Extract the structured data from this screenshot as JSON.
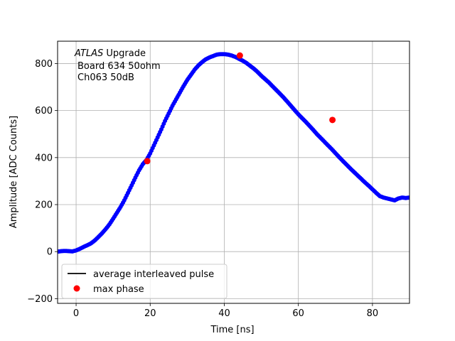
{
  "chart_data": {
    "type": "scatter",
    "xlabel": "Time [ns]",
    "ylabel": "Amplitude [ADC Counts]",
    "xlim": [
      -5,
      90
    ],
    "ylim": [
      -220,
      895
    ],
    "xticks": [
      0,
      20,
      40,
      60,
      80
    ],
    "yticks": [
      -200,
      0,
      200,
      400,
      600,
      800
    ],
    "grid": true,
    "legend_position": "lower-left",
    "annotation": {
      "line1_italic": "ATLAS",
      "line1_rest": " Upgrade",
      "line2": "Board 634 50ohm",
      "line3": "Ch063 50dB"
    },
    "series": [
      {
        "name": "average interleaved pulse",
        "color": "#000000",
        "marker_color": "#0000ff",
        "x": [
          -5,
          -4,
          -3,
          -2,
          -1,
          0,
          1,
          2,
          3,
          4,
          5,
          6,
          7,
          8,
          9,
          10,
          11,
          12,
          13,
          14,
          15,
          16,
          17,
          18,
          19,
          20,
          21,
          22,
          23,
          24,
          25,
          26,
          27,
          28,
          29,
          30,
          31,
          32,
          33,
          34,
          35,
          36,
          37,
          38,
          39,
          40,
          41,
          42,
          43,
          44,
          45,
          46,
          47,
          48,
          49,
          50,
          51,
          52,
          53,
          54,
          55,
          56,
          57,
          58,
          59,
          60,
          61,
          62,
          63,
          64,
          65,
          66,
          67,
          68,
          69,
          70,
          71,
          72,
          73,
          74,
          75,
          76,
          77,
          78,
          79,
          80,
          81,
          82,
          83,
          84,
          85,
          86,
          87,
          88,
          89,
          90
        ],
        "y": [
          0,
          2,
          3,
          2,
          1,
          5,
          12,
          20,
          27,
          35,
          47,
          62,
          78,
          96,
          116,
          140,
          165,
          190,
          218,
          250,
          282,
          315,
          346,
          372,
          390,
          418,
          452,
          486,
          520,
          556,
          588,
          620,
          648,
          676,
          704,
          730,
          752,
          774,
          792,
          806,
          818,
          826,
          832,
          838,
          840,
          840,
          838,
          834,
          828,
          820,
          812,
          802,
          790,
          778,
          764,
          748,
          734,
          720,
          704,
          688,
          672,
          656,
          638,
          620,
          602,
          584,
          568,
          552,
          535,
          518,
          500,
          484,
          468,
          452,
          436,
          419,
          402,
          386,
          370,
          354,
          339,
          324,
          309,
          294,
          280,
          265,
          250,
          236,
          230,
          226,
          222,
          218,
          226,
          230,
          228,
          230
        ]
      },
      {
        "name": "max phase",
        "color": "#ff0000",
        "x": [
          19.2,
          44.2,
          69.2
        ],
        "y": [
          385,
          834,
          560
        ]
      }
    ]
  }
}
